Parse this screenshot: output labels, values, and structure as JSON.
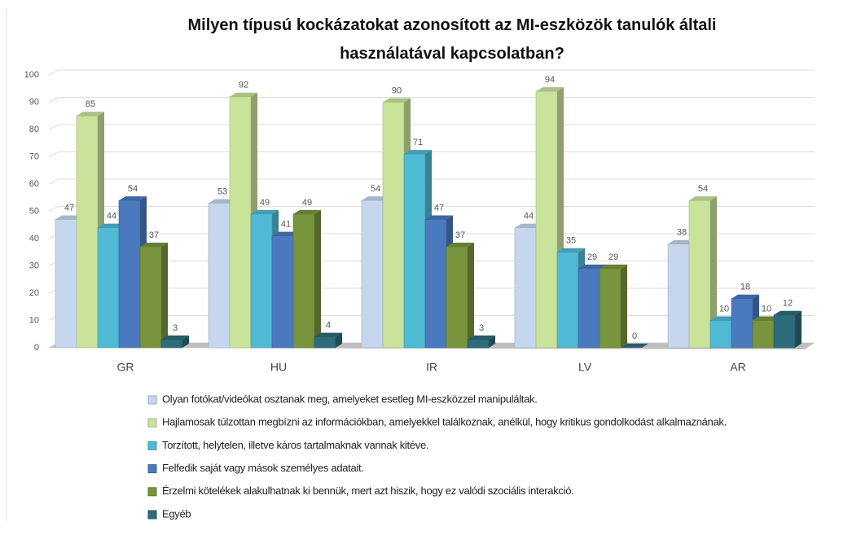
{
  "chart_data": {
    "type": "bar3d",
    "title": "Milyen típusú kockázatokat azonosított az MI-eszközök tanulók általi használatával kapcsolatban?",
    "categories": [
      "GR",
      "HU",
      "IR",
      "LV",
      "AR"
    ],
    "series": [
      {
        "name": "Olyan fotókat/videókat osztanak meg, amelyeket esetleg MI-eszközzel manipuláltak.",
        "color": "#c6d6ee",
        "values": [
          47,
          53,
          54,
          44,
          38
        ]
      },
      {
        "name": "Hajlamosak túlzottan megbízni az információkban, amelyekkel találkoznak, anélkül, hogy kritikus gondolkodást alkalmaznának.",
        "color": "#c9e39b",
        "values": [
          85,
          92,
          90,
          94,
          54
        ]
      },
      {
        "name": "Torzított, helytelen, illetve káros tartalmaknak vannak kitéve.",
        "color": "#50b9d4",
        "values": [
          44,
          49,
          71,
          35,
          10
        ]
      },
      {
        "name": "Felfedik saját vagy mások személyes adatait.",
        "color": "#4a79be",
        "values": [
          54,
          41,
          47,
          29,
          18
        ]
      },
      {
        "name": "Érzelmi kötelékek alakulhatnak ki bennük, mert azt hiszik, hogy ez valódi szociális interakció.",
        "color": "#78953d",
        "values": [
          37,
          49,
          37,
          29,
          10
        ]
      },
      {
        "name": "Egyéb",
        "color": "#2e6b7b",
        "values": [
          3,
          4,
          3,
          0,
          12
        ]
      }
    ],
    "ylim": [
      0,
      100
    ],
    "yticks": [
      0,
      10,
      20,
      30,
      40,
      50,
      60,
      70,
      80,
      90,
      100
    ],
    "grid": true
  }
}
